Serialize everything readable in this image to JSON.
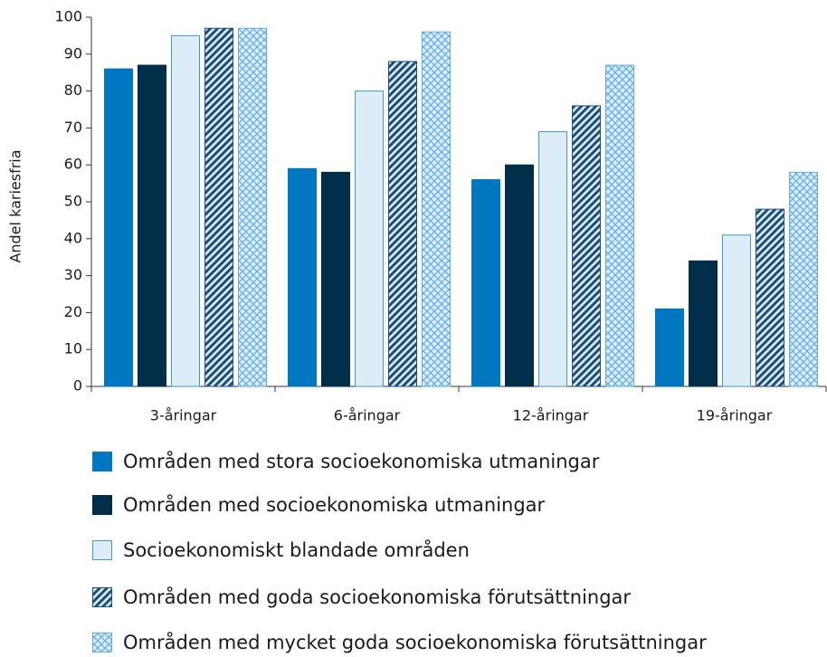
{
  "chart_data": {
    "type": "bar",
    "y_label": "Andel kariesfria",
    "categories": [
      "3-åringar",
      "6-åringar",
      "12-åringar",
      "19-åringar"
    ],
    "series": [
      {
        "name": "Områden med stora socioekonomiska utmaningar",
        "color": "#0077c0",
        "edgecolor": "#0077c0",
        "values": [
          86,
          59,
          56,
          21
        ]
      },
      {
        "name": "Områden med socioekonomiska utmaningar",
        "color": "#002d4a",
        "edgecolor": "#002d4a",
        "values": [
          87,
          58,
          60,
          34
        ]
      },
      {
        "name": "Socioekonomiskt blandade områden",
        "color": "#dcedf8",
        "edgecolor": "#3d9ad1",
        "values": [
          95,
          80,
          69,
          41
        ]
      },
      {
        "name": "Områden med goda socioekonomiska förutsättningar",
        "color": "#1d4f7c",
        "edgecolor": "#1d4f7c",
        "pattern": "diagonal",
        "values": [
          97,
          88,
          76,
          48
        ]
      },
      {
        "name": "Områden med mycket goda socioekonomiska förutsättningar",
        "color": "#5eaee0",
        "edgecolor": "#5eaee0",
        "pattern": "cross",
        "values": [
          97,
          96,
          87,
          58
        ]
      }
    ],
    "ylim": [
      0,
      100
    ],
    "yticks": [
      0,
      10,
      20,
      30,
      40,
      50,
      60,
      70,
      80,
      90,
      100
    ]
  }
}
